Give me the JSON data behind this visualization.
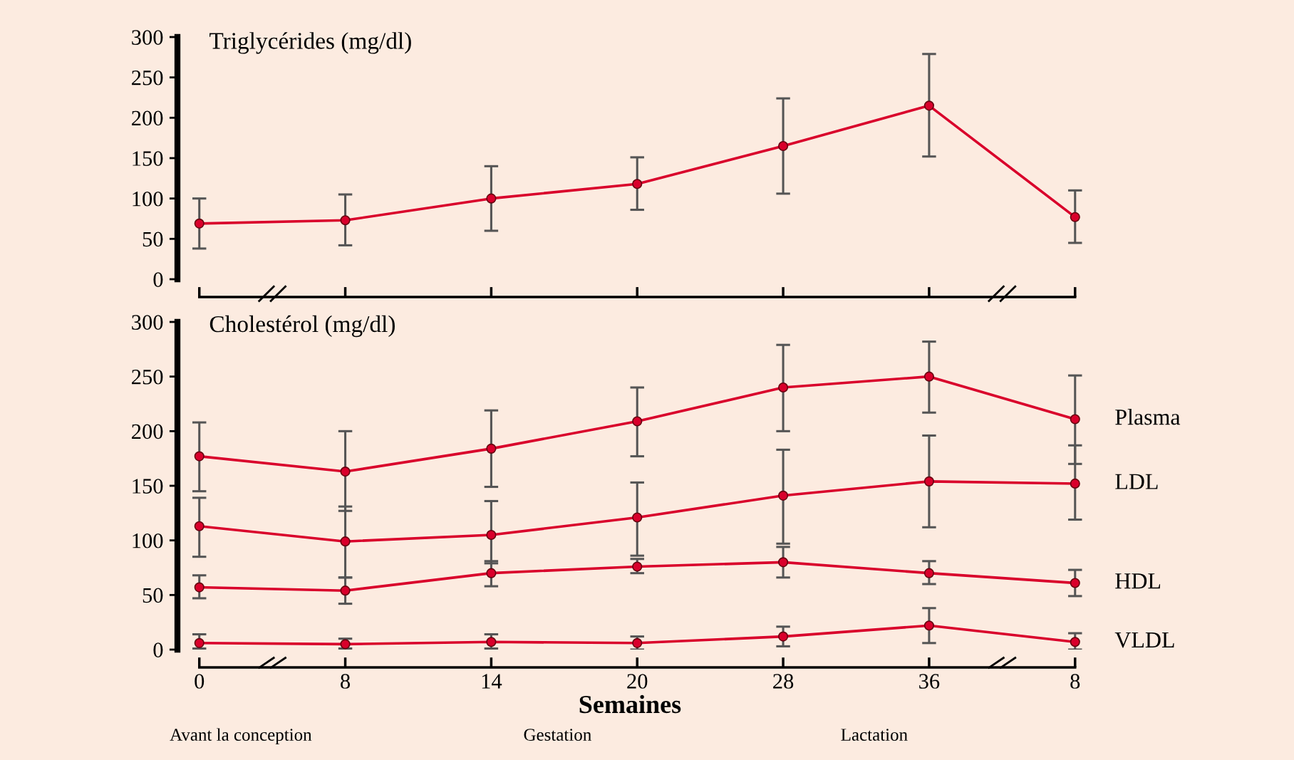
{
  "chart_data": [
    {
      "type": "line",
      "title": "Triglycérides (mg/dl)",
      "categories": [
        "0",
        "8",
        "14",
        "20",
        "28",
        "36",
        "8"
      ],
      "tick_labels": "y",
      "ylim": [
        0,
        300
      ],
      "yticks": [
        0,
        50,
        100,
        150,
        200,
        250,
        300
      ],
      "grid": false,
      "marker": "circle",
      "line_style": "solid",
      "series": [
        {
          "color": "#d9002b",
          "values": [
            69,
            73,
            100,
            118,
            165,
            215,
            77
          ],
          "errors": [
            [
              38,
              100
            ],
            [
              42,
              105
            ],
            [
              60,
              140
            ],
            [
              86,
              151
            ],
            [
              106,
              224
            ],
            [
              152,
              279
            ],
            [
              45,
              110
            ]
          ]
        }
      ]
    },
    {
      "type": "line",
      "title": "Cholestérol (mg/dl)",
      "xlabel": "Semaines",
      "categories": [
        "0",
        "8",
        "14",
        "20",
        "28",
        "36",
        "8"
      ],
      "ylim": [
        0,
        300
      ],
      "yticks": [
        0,
        50,
        100,
        150,
        200,
        250,
        300
      ],
      "grid": false,
      "marker": "circle",
      "line_style": "solid",
      "annotations": [
        "Avant la conception",
        "Gestation",
        "Lactation"
      ],
      "series": [
        {
          "name": "Plasma",
          "color": "#d9002b",
          "values": [
            177,
            163,
            184,
            209,
            240,
            250,
            211
          ],
          "errors": [
            [
              145,
              208
            ],
            [
              127,
              200
            ],
            [
              149,
              219
            ],
            [
              177,
              240
            ],
            [
              200,
              279
            ],
            [
              217,
              282
            ],
            [
              170,
              251
            ]
          ]
        },
        {
          "name": "LDL",
          "color": "#d9002b",
          "values": [
            113,
            99,
            105,
            121,
            141,
            154,
            152
          ],
          "errors": [
            [
              85,
              139
            ],
            [
              66,
              131
            ],
            [
              79,
              136
            ],
            [
              86,
              153
            ],
            [
              97,
              183
            ],
            [
              112,
              196
            ],
            [
              119,
              187
            ]
          ]
        },
        {
          "name": "HDL",
          "color": "#d9002b",
          "values": [
            57,
            54,
            70,
            76,
            80,
            70,
            61
          ],
          "errors": [
            [
              47,
              68
            ],
            [
              42,
              66
            ],
            [
              58,
              81
            ],
            [
              70,
              83
            ],
            [
              66,
              94
            ],
            [
              60,
              81
            ],
            [
              49,
              73
            ]
          ]
        },
        {
          "name": "VLDL",
          "color": "#d9002b",
          "values": [
            6,
            5,
            7,
            6,
            12,
            22,
            7
          ],
          "errors": [
            [
              1,
              14
            ],
            [
              1,
              10
            ],
            [
              1,
              14
            ],
            [
              0,
              12
            ],
            [
              3,
              21
            ],
            [
              6,
              38
            ],
            [
              0,
              15
            ]
          ]
        }
      ]
    }
  ]
}
